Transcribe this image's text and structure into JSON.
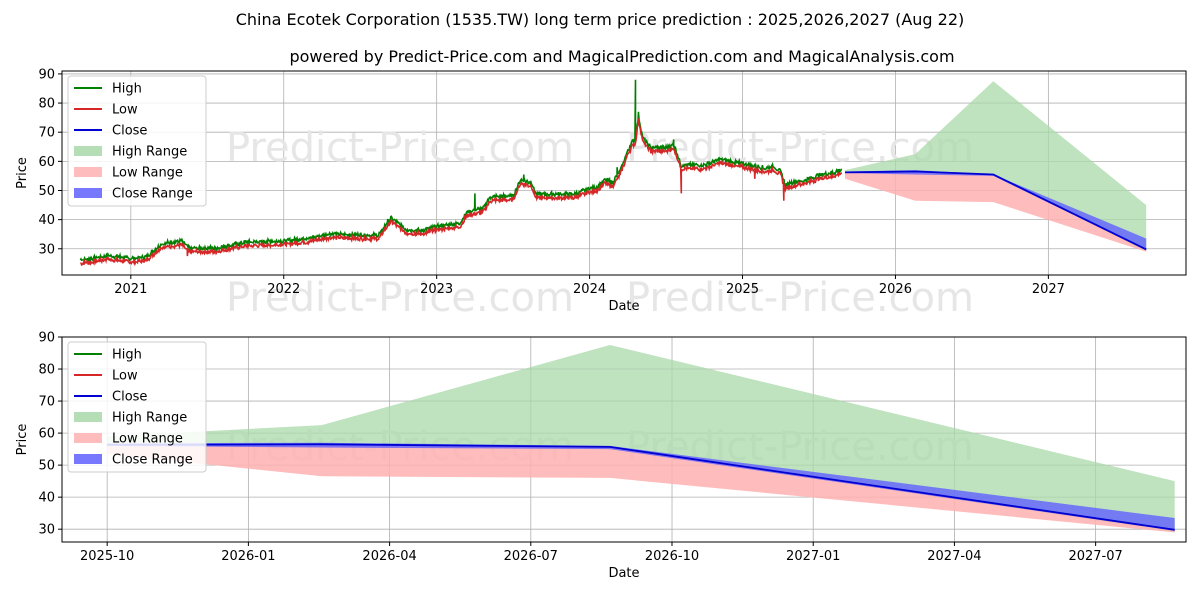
{
  "header": {
    "title": "China Ecotek Corporation (1535.TW) long term price prediction : 2025,2026,2027 (Aug 22)",
    "subtitle": "powered by Predict-Price.com and MagicalPrediction.com and MagicalAnalysis.com"
  },
  "watermark": "Predict-Price.com",
  "legend": {
    "items": [
      {
        "label": "High",
        "kind": "line",
        "color": "#008000"
      },
      {
        "label": "Low",
        "kind": "line",
        "color": "#d62728"
      },
      {
        "label": "Close",
        "kind": "line",
        "color": "#0000d0"
      },
      {
        "label": "High Range",
        "kind": "band",
        "color": "#a9d8a9"
      },
      {
        "label": "Low Range",
        "kind": "band",
        "color": "#ffb0b0"
      },
      {
        "label": "Close Range",
        "kind": "band",
        "color": "#6060ff"
      }
    ]
  },
  "chart_data": [
    {
      "type": "line",
      "title": "",
      "xlabel": "Date",
      "ylabel": "Price",
      "xlim": [
        2020.55,
        2027.9
      ],
      "ylim": [
        21,
        91
      ],
      "x_ticks": [
        2021,
        2022,
        2023,
        2024,
        2025,
        2026,
        2027
      ],
      "x_tick_labels": [
        "2021",
        "2022",
        "2023",
        "2024",
        "2025",
        "2026",
        "2027"
      ],
      "y_ticks": [
        30,
        40,
        50,
        60,
        70,
        80,
        90
      ],
      "history_anchors": [
        [
          2020.67,
          25.5
        ],
        [
          2020.75,
          26
        ],
        [
          2020.85,
          27
        ],
        [
          2021.0,
          26
        ],
        [
          2021.1,
          26.5
        ],
        [
          2021.2,
          31
        ],
        [
          2021.33,
          32
        ],
        [
          2021.38,
          29.5
        ],
        [
          2021.55,
          29.5
        ],
        [
          2021.75,
          31.5
        ],
        [
          2022.0,
          32
        ],
        [
          2022.17,
          33
        ],
        [
          2022.3,
          34.5
        ],
        [
          2022.5,
          34
        ],
        [
          2022.62,
          34
        ],
        [
          2022.7,
          40
        ],
        [
          2022.8,
          36
        ],
        [
          2022.9,
          35.5
        ],
        [
          2023.0,
          37
        ],
        [
          2023.15,
          38
        ],
        [
          2023.2,
          42
        ],
        [
          2023.3,
          43
        ],
        [
          2023.35,
          47
        ],
        [
          2023.5,
          47.5
        ],
        [
          2023.55,
          53
        ],
        [
          2023.62,
          52
        ],
        [
          2023.65,
          48
        ],
        [
          2023.8,
          48
        ],
        [
          2023.9,
          48
        ],
        [
          2024.0,
          50
        ],
        [
          2024.05,
          50.5
        ],
        [
          2024.1,
          53
        ],
        [
          2024.15,
          52
        ],
        [
          2024.2,
          56
        ],
        [
          2024.25,
          63
        ],
        [
          2024.28,
          66
        ],
        [
          2024.3,
          67
        ],
        [
          2024.32,
          75
        ],
        [
          2024.35,
          67
        ],
        [
          2024.4,
          64
        ],
        [
          2024.5,
          64
        ],
        [
          2024.55,
          65
        ],
        [
          2024.6,
          58
        ],
        [
          2024.65,
          58
        ],
        [
          2024.75,
          58
        ],
        [
          2024.85,
          60
        ],
        [
          2024.95,
          59
        ],
        [
          2025.05,
          58
        ],
        [
          2025.15,
          57
        ],
        [
          2025.2,
          57.5
        ],
        [
          2025.25,
          56
        ],
        [
          2025.28,
          51
        ],
        [
          2025.32,
          52
        ],
        [
          2025.42,
          53
        ],
        [
          2025.5,
          54.5
        ],
        [
          2025.6,
          55.5
        ],
        [
          2025.65,
          56.5
        ]
      ],
      "history_spikes": [
        [
          2024.3,
          88
        ],
        [
          2024.32,
          77
        ],
        [
          2022.7,
          41
        ],
        [
          2023.57,
          55.5
        ],
        [
          2023.25,
          49
        ],
        [
          2024.55,
          67.5
        ],
        [
          2024.18,
          58
        ]
      ],
      "history_dips": [
        [
          2024.6,
          49
        ],
        [
          2025.27,
          46.5
        ],
        [
          2021.37,
          27.5
        ],
        [
          2025.08,
          54
        ]
      ],
      "forecast": {
        "dates": [
          "2025-09-01",
          "2026-02-15",
          "2026-08-22",
          "2027-08-22"
        ],
        "x": [
          2025.67,
          2026.13,
          2026.64,
          2027.64
        ],
        "high_range": {
          "upper": [
            57,
            62.5,
            87.5,
            45
          ],
          "lower": [
            56,
            56.5,
            55.5,
            29
          ]
        },
        "low_range": {
          "upper": [
            56,
            56,
            55.5,
            30
          ],
          "lower": [
            54,
            46.5,
            46,
            29
          ]
        },
        "close_range": {
          "upper": [
            56.5,
            57,
            55.5,
            33.5
          ],
          "lower": [
            56,
            55.5,
            55,
            29.5
          ]
        },
        "close": [
          56.2,
          56.5,
          55.5,
          29.8
        ]
      }
    },
    {
      "type": "line",
      "title": "",
      "xlabel": "Date",
      "ylabel": "Price",
      "xlim": [
        2025.67,
        2027.66
      ],
      "ylim": [
        26,
        90
      ],
      "x_ticks": [
        2025.75,
        2026.0,
        2026.25,
        2026.5,
        2026.75,
        2027.0,
        2027.25,
        2027.5
      ],
      "x_tick_labels": [
        "2025-10",
        "2026-01",
        "2026-04",
        "2026-07",
        "2026-10",
        "2027-01",
        "2027-04",
        "2027-07"
      ],
      "y_ticks": [
        30,
        40,
        50,
        60,
        70,
        80,
        90
      ],
      "forecast": {
        "x": [
          2025.75,
          2026.13,
          2026.64,
          2027.64
        ],
        "high_range": {
          "upper": [
            59,
            62.5,
            87.5,
            45
          ],
          "lower": [
            56,
            56.5,
            55.5,
            29
          ]
        },
        "low_range": {
          "upper": [
            56,
            56,
            55.5,
            30
          ],
          "lower": [
            53.5,
            46.5,
            46,
            29
          ]
        },
        "close_range": {
          "upper": [
            56.8,
            57,
            56,
            33.5
          ],
          "lower": [
            56,
            55.5,
            55,
            29.5
          ]
        },
        "close": [
          56.3,
          56.5,
          55.7,
          29.8
        ]
      }
    }
  ]
}
